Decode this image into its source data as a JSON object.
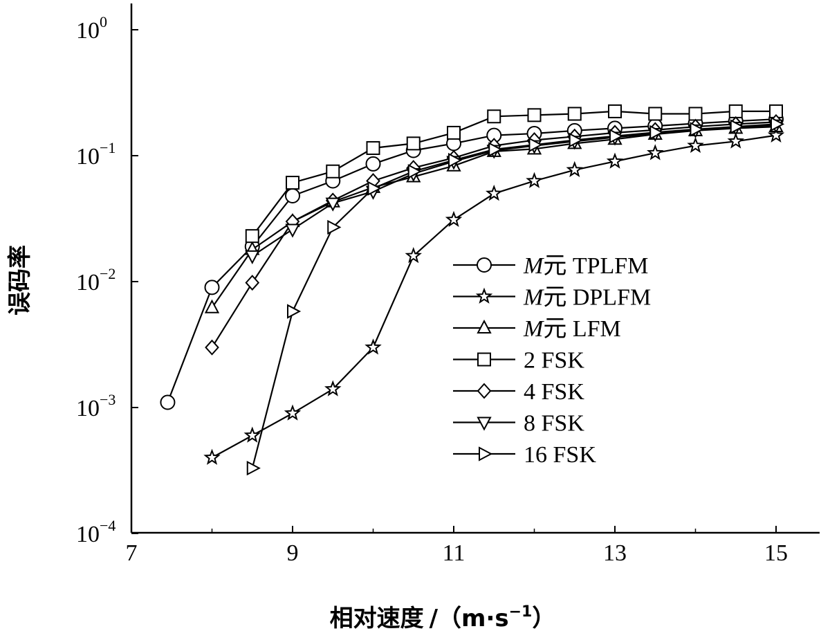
{
  "chart_data": {
    "type": "line",
    "xlabel": "相对速度",
    "xunit_prefix": "/（m·s",
    "xunit_exp": "−1",
    "xunit_suffix": "）",
    "ylabel": "误码率",
    "xlim": [
      7,
      15.6
    ],
    "ylim": [
      0.0001,
      1
    ],
    "yscale": "log",
    "xticks": [
      "7",
      "9",
      "11",
      "13",
      "15"
    ],
    "xtick_values": [
      7,
      9,
      11,
      13,
      15
    ],
    "yticks": [
      {
        "base": "10",
        "exp": "0",
        "value": 1
      },
      {
        "base": "10",
        "exp": "−1",
        "value": 0.1
      },
      {
        "base": "10",
        "exp": "−2",
        "value": 0.01
      },
      {
        "base": "10",
        "exp": "−3",
        "value": 0.001
      },
      {
        "base": "10",
        "exp": "−4",
        "value": 0.0001
      }
    ],
    "grid": false,
    "legend_position": "center-right",
    "series": [
      {
        "name_italic": "M",
        "name": "元 TPLFM",
        "marker": "circle",
        "x": [
          7.45,
          8.0,
          8.5,
          9.0,
          9.5,
          10.0,
          10.5,
          11.0,
          11.5,
          12.0,
          12.5,
          13.0,
          13.5,
          14.0,
          14.5,
          15.0
        ],
        "y": [
          0.0011,
          0.009,
          0.019,
          0.048,
          0.063,
          0.086,
          0.11,
          0.125,
          0.145,
          0.15,
          0.158,
          0.165,
          0.172,
          0.18,
          0.188,
          0.195
        ]
      },
      {
        "name_italic": "M",
        "name": "元 DPLFM",
        "marker": "star",
        "x": [
          8.0,
          8.5,
          9.0,
          9.5,
          10.0,
          10.5,
          11.0,
          11.5,
          12.0,
          12.5,
          13.0,
          13.5,
          14.0,
          14.5,
          15.0
        ],
        "y": [
          0.0004,
          0.0006,
          0.0009,
          0.0014,
          0.003,
          0.016,
          0.031,
          0.05,
          0.063,
          0.077,
          0.09,
          0.105,
          0.12,
          0.13,
          0.145
        ]
      },
      {
        "name_italic": "M",
        "name": "元 LFM",
        "marker": "triangle-up",
        "x": [
          8.0,
          8.5,
          9.0,
          9.5,
          10.0,
          10.5,
          11.0,
          11.5,
          12.0,
          12.5,
          13.0,
          13.5,
          14.0,
          14.5,
          15.0
        ],
        "y": [
          0.0062,
          0.018,
          0.03,
          0.043,
          0.056,
          0.068,
          0.083,
          0.108,
          0.113,
          0.125,
          0.135,
          0.148,
          0.158,
          0.165,
          0.17
        ]
      },
      {
        "name_italic": "",
        "name": "2 FSK",
        "marker": "square",
        "x": [
          8.5,
          9.0,
          9.5,
          10.0,
          10.5,
          11.0,
          11.5,
          12.0,
          12.5,
          13.0,
          13.5,
          14.0,
          14.5,
          15.0
        ],
        "y": [
          0.023,
          0.061,
          0.075,
          0.115,
          0.125,
          0.152,
          0.205,
          0.21,
          0.215,
          0.225,
          0.215,
          0.215,
          0.225,
          0.225
        ]
      },
      {
        "name_italic": "",
        "name": "4 FSK",
        "marker": "diamond",
        "x": [
          8.0,
          8.5,
          9.0,
          9.5,
          10.0,
          10.5,
          11.0,
          11.5,
          12.0,
          12.5,
          13.0,
          13.5,
          14.0,
          14.5,
          15.0
        ],
        "y": [
          0.003,
          0.0098,
          0.03,
          0.044,
          0.063,
          0.08,
          0.096,
          0.12,
          0.133,
          0.142,
          0.152,
          0.16,
          0.17,
          0.178,
          0.185
        ]
      },
      {
        "name_italic": "",
        "name": "8 FSK",
        "marker": "triangle-down",
        "x": [
          8.5,
          9.0,
          9.5,
          10.0,
          10.5,
          11.0,
          11.5,
          12.0,
          12.5,
          13.0,
          13.5,
          14.0,
          14.5,
          15.0
        ],
        "y": [
          0.016,
          0.026,
          0.042,
          0.052,
          0.072,
          0.09,
          0.11,
          0.12,
          0.13,
          0.14,
          0.15,
          0.16,
          0.168,
          0.175
        ]
      },
      {
        "name_italic": "",
        "name": "16 FSK",
        "marker": "triangle-right",
        "x": [
          8.5,
          9.0,
          9.5,
          10.0,
          10.5,
          11.0,
          11.5,
          12.0,
          12.5,
          13.0,
          13.5,
          14.0,
          14.5,
          15.0
        ],
        "y": [
          0.00033,
          0.0058,
          0.027,
          0.055,
          0.075,
          0.092,
          0.112,
          0.122,
          0.133,
          0.143,
          0.153,
          0.162,
          0.17,
          0.178
        ]
      }
    ]
  }
}
